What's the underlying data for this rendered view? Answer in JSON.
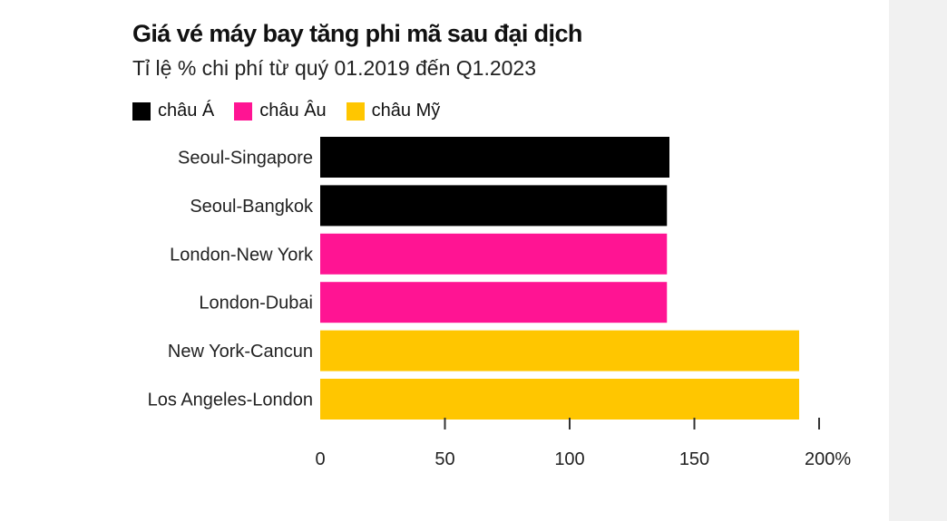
{
  "chart_data": {
    "type": "bar",
    "orientation": "horizontal",
    "title": "Giá vé máy bay tăng phi mã sau đại dịch",
    "subtitle": "Tỉ lệ % chi phí từ quý 01.2019 đến Q1.2023",
    "categories": [
      "Seoul-Singapore",
      "Seoul-Bangkok",
      "London-New York",
      "London-Dubai",
      "New York-Cancun",
      "Los Angeles-London"
    ],
    "values": [
      140,
      139,
      139,
      139,
      192,
      192
    ],
    "groups": [
      "châu Á",
      "châu Á",
      "châu Âu",
      "châu Âu",
      "châu Mỹ",
      "châu Mỹ"
    ],
    "legend": [
      {
        "name": "châu Á",
        "color": "#000000"
      },
      {
        "name": "châu Âu",
        "color": "#ff1493"
      },
      {
        "name": "châu Mỹ",
        "color": "#ffc600"
      }
    ],
    "legend_position": "top-left",
    "xlim": [
      0,
      200
    ],
    "x_ticks": [
      0,
      50,
      100,
      150,
      200
    ],
    "x_tick_labels": [
      "0",
      "50",
      "100",
      "150",
      "200%"
    ],
    "grid": false
  }
}
